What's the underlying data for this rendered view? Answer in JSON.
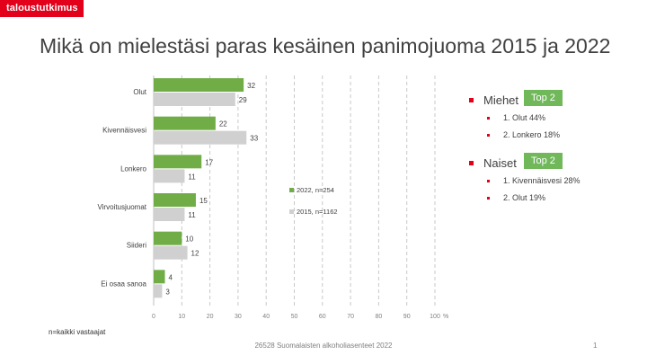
{
  "brand": "taloustutkimus",
  "title": "Mikä on mielestäsi paras kesäinen panimojuoma 2015 ja 2022",
  "chart_data": {
    "type": "bar",
    "orientation": "horizontal",
    "categories": [
      "Olut",
      "Kivennäisvesi",
      "Lonkero",
      "Virvoitusjuomat",
      "Siideri",
      "Ei osaa sanoa"
    ],
    "series": [
      {
        "name": "2022, n=254",
        "values": [
          32,
          22,
          17,
          15,
          10,
          4
        ],
        "color": "#70ad47"
      },
      {
        "name": "2015, n=1162",
        "values": [
          29,
          33,
          11,
          11,
          12,
          3
        ],
        "color": "#d0d0d0"
      }
    ],
    "xlim": [
      0,
      100
    ],
    "xticks": [
      0,
      10,
      20,
      30,
      40,
      50,
      60,
      70,
      80,
      90,
      100
    ],
    "xunit": "%",
    "grid": true,
    "legend_position": "right"
  },
  "panel": {
    "groups": [
      {
        "label": "Miehet",
        "badge": "Top 2",
        "items": [
          "1. Olut 44%",
          "2. Lonkero 18%"
        ]
      },
      {
        "label": "Naiset",
        "badge": "Top 2",
        "items": [
          "1. Kivennäisvesi 28%",
          "2. Olut 19%"
        ]
      }
    ]
  },
  "footnote": "n=kaikki vastaajat",
  "footer": "26528 Suomalaisten alkoholiasenteet 2022",
  "page_number": "1"
}
